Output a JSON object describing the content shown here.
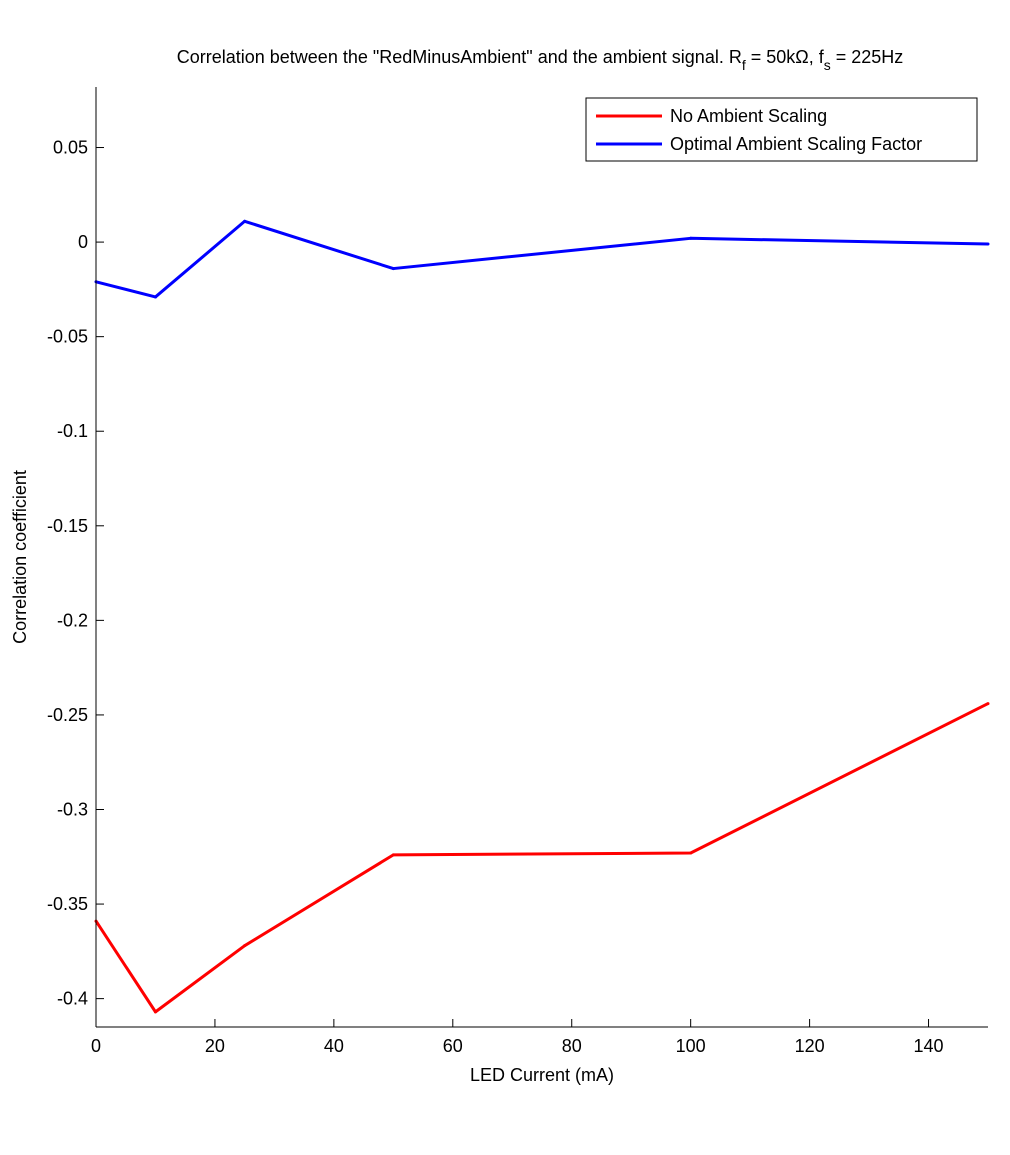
{
  "chart_data": {
    "type": "line",
    "title": {
      "text_before": "Correlation between the \"RedMinusAmbient\" and the ambient signal. R",
      "r_sub": "f",
      "mid": " = 50kΩ, f",
      "f_sub": "s",
      "after": " = 225Hz"
    },
    "xlabel": "LED Current (mA)",
    "ylabel": "Correlation coefficient",
    "xlim": [
      0,
      150
    ],
    "ylim": [
      -0.415,
      0.082
    ],
    "xticks": [
      0,
      20,
      40,
      60,
      80,
      100,
      120,
      140
    ],
    "xtick_labels": [
      "0",
      "20",
      "40",
      "60",
      "80",
      "100",
      "120",
      "140"
    ],
    "yticks": [
      0.05,
      0,
      -0.05,
      -0.1,
      -0.15,
      -0.2,
      -0.25,
      -0.3,
      -0.35,
      -0.4
    ],
    "ytick_labels": [
      "0.05",
      "0",
      "-0.05",
      "-0.1",
      "-0.15",
      "-0.2",
      "-0.25",
      "-0.3",
      "-0.35",
      "-0.4"
    ],
    "grid": false,
    "legend_position": "top-right",
    "series": [
      {
        "name": "No Ambient Scaling",
        "color": "#ff0000",
        "x": [
          0,
          10,
          25,
          50,
          100,
          150
        ],
        "y": [
          -0.359,
          -0.407,
          -0.372,
          -0.324,
          -0.323,
          -0.244
        ]
      },
      {
        "name": "Optimal Ambient Scaling Factor",
        "color": "#0000ff",
        "x": [
          0,
          10,
          25,
          50,
          100,
          150
        ],
        "y": [
          -0.021,
          -0.029,
          0.011,
          -0.014,
          0.002,
          -0.001
        ]
      }
    ]
  }
}
